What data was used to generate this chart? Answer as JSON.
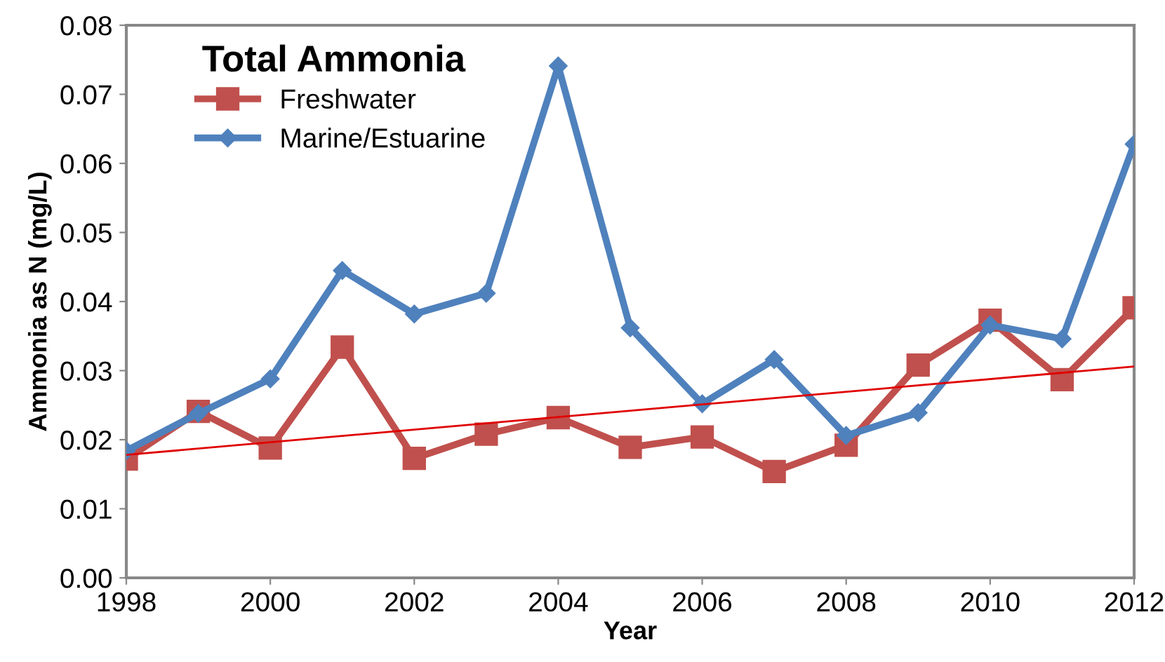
{
  "chart_data": {
    "type": "line",
    "title": "Total Ammonia",
    "xlabel": "Year",
    "ylabel": "Ammonia as N (mg/L)",
    "x": [
      1998,
      1999,
      2000,
      2001,
      2002,
      2003,
      2004,
      2005,
      2006,
      2007,
      2008,
      2009,
      2010,
      2011,
      2012
    ],
    "series": [
      {
        "name": "Freshwater",
        "color": "#c0504d",
        "marker": "square",
        "values": [
          0.0172,
          0.0241,
          0.0188,
          0.0334,
          0.0173,
          0.0208,
          0.0232,
          0.0189,
          0.0204,
          0.0154,
          0.0192,
          0.0308,
          0.0373,
          0.0287,
          0.0391
        ]
      },
      {
        "name": "Marine/Estuarine",
        "color": "#4f81bd",
        "marker": "diamond",
        "values": [
          0.0184,
          0.0238,
          0.0288,
          0.0445,
          0.0382,
          0.0412,
          0.0741,
          0.0362,
          0.0252,
          0.0316,
          0.0206,
          0.0239,
          0.0366,
          0.0346,
          0.0628
        ]
      },
      {
        "type": "line",
        "color": "#e00000",
        "marker": "none",
        "x": [
          1998,
          2012
        ],
        "values": [
          0.0178,
          0.0306
        ]
      }
    ],
    "xlim": [
      1998,
      2012
    ],
    "xticks": [
      1998,
      2000,
      2002,
      2004,
      2006,
      2008,
      2010,
      2012
    ],
    "ylim": [
      0,
      0.08
    ],
    "yticks": [
      {
        "value": 0,
        "label": "0.00"
      },
      {
        "value": 0.01,
        "label": "0.01"
      },
      {
        "value": 0.02,
        "label": "0.02"
      },
      {
        "value": 0.03,
        "label": "0.03"
      },
      {
        "value": 0.04,
        "label": "0.04"
      },
      {
        "value": 0.05,
        "label": "0.05"
      },
      {
        "value": 0.06,
        "label": "0.06"
      },
      {
        "value": 0.07,
        "label": "0.07"
      },
      {
        "value": 0.08,
        "label": "0.08"
      }
    ],
    "grid": false,
    "legend": "top left"
  }
}
